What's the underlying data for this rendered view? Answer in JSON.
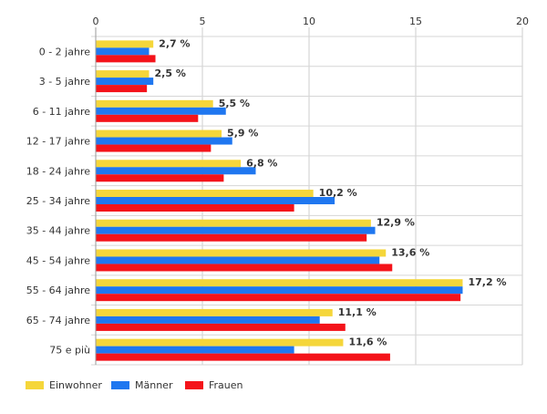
{
  "chart_data": {
    "type": "bar",
    "orientation": "horizontal",
    "title": "",
    "xlabel": "",
    "ylabel": "",
    "xlim": [
      0,
      20
    ],
    "ticks": [
      "0",
      "5",
      "10",
      "15",
      "20"
    ],
    "grid": true,
    "legend_position": "bottom-left",
    "categories": [
      "0 - 2 jahre",
      "3 - 5 jahre",
      "6 - 11 jahre",
      "12 - 17 jahre",
      "18 - 24 jahre",
      "25 - 34 jahre",
      "35 - 44 jahre",
      "45 - 54 jahre",
      "55 - 64 jahre",
      "65 - 74 jahre",
      "75 e più"
    ],
    "series": [
      {
        "name": "Einwohner",
        "color": "#f5d63a",
        "values": [
          2.7,
          2.5,
          5.5,
          5.9,
          6.8,
          10.2,
          12.9,
          13.6,
          17.2,
          11.1,
          11.6
        ]
      },
      {
        "name": "Männer",
        "color": "#1f77f0",
        "values": [
          2.5,
          2.7,
          6.1,
          6.4,
          7.5,
          11.2,
          13.1,
          13.3,
          17.2,
          10.5,
          9.3
        ]
      },
      {
        "name": "Frauen",
        "color": "#f4131a",
        "values": [
          2.8,
          2.4,
          4.8,
          5.4,
          6.0,
          9.3,
          12.7,
          13.9,
          17.1,
          11.7,
          13.8
        ]
      }
    ],
    "data_labels": [
      "2,7 %",
      "2,5 %",
      "5,5 %",
      "5,9 %",
      "6,8 %",
      "10,2 %",
      "12,9 %",
      "13,6 %",
      "17,2 %",
      "11,1 %",
      "11,6 %"
    ]
  }
}
